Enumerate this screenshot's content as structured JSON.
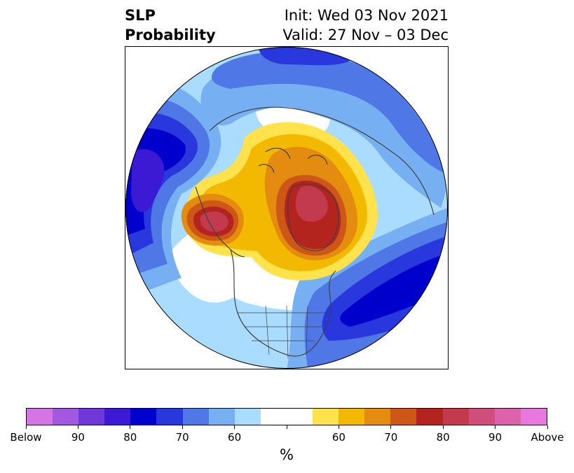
{
  "title": {
    "left_line1": "SLP",
    "left_line2": "Probability",
    "right_line1": "Init: Wed 03 Nov 2021",
    "right_line2": "Valid: 27 Nov – 03 Dec"
  },
  "colorbar": {
    "colors": [
      "#d475e6",
      "#a258e0",
      "#7038d9",
      "#3c1ad3",
      "#0000cc",
      "#2938dc",
      "#5077e6",
      "#77b0f2",
      "#aadcff",
      "#ffffff",
      "#ffffff",
      "#ffe24c",
      "#f2b900",
      "#e38c0f",
      "#cd5717",
      "#b3241f",
      "#c3394e",
      "#d04e7c",
      "#dd62ac",
      "#e878dd"
    ],
    "tick_labels": [
      "Below",
      "90",
      "80",
      "70",
      "60",
      "60",
      "70",
      "80",
      "90",
      "Above"
    ],
    "unit": "%"
  },
  "map": {
    "projection": "north-polar-stereographic",
    "variable": "sea-level-pressure-probability",
    "regions": [
      {
        "name": "north-pacific-below",
        "category": "below-80-90"
      },
      {
        "name": "north-atlantic-below",
        "category": "below-80-90"
      },
      {
        "name": "greenland-above",
        "category": "above-70-80"
      },
      {
        "name": "alaska-above",
        "category": "above-80-90"
      },
      {
        "name": "arctic-above",
        "category": "above-60-70"
      },
      {
        "name": "eurasia-below",
        "category": "below-60-70"
      }
    ]
  }
}
